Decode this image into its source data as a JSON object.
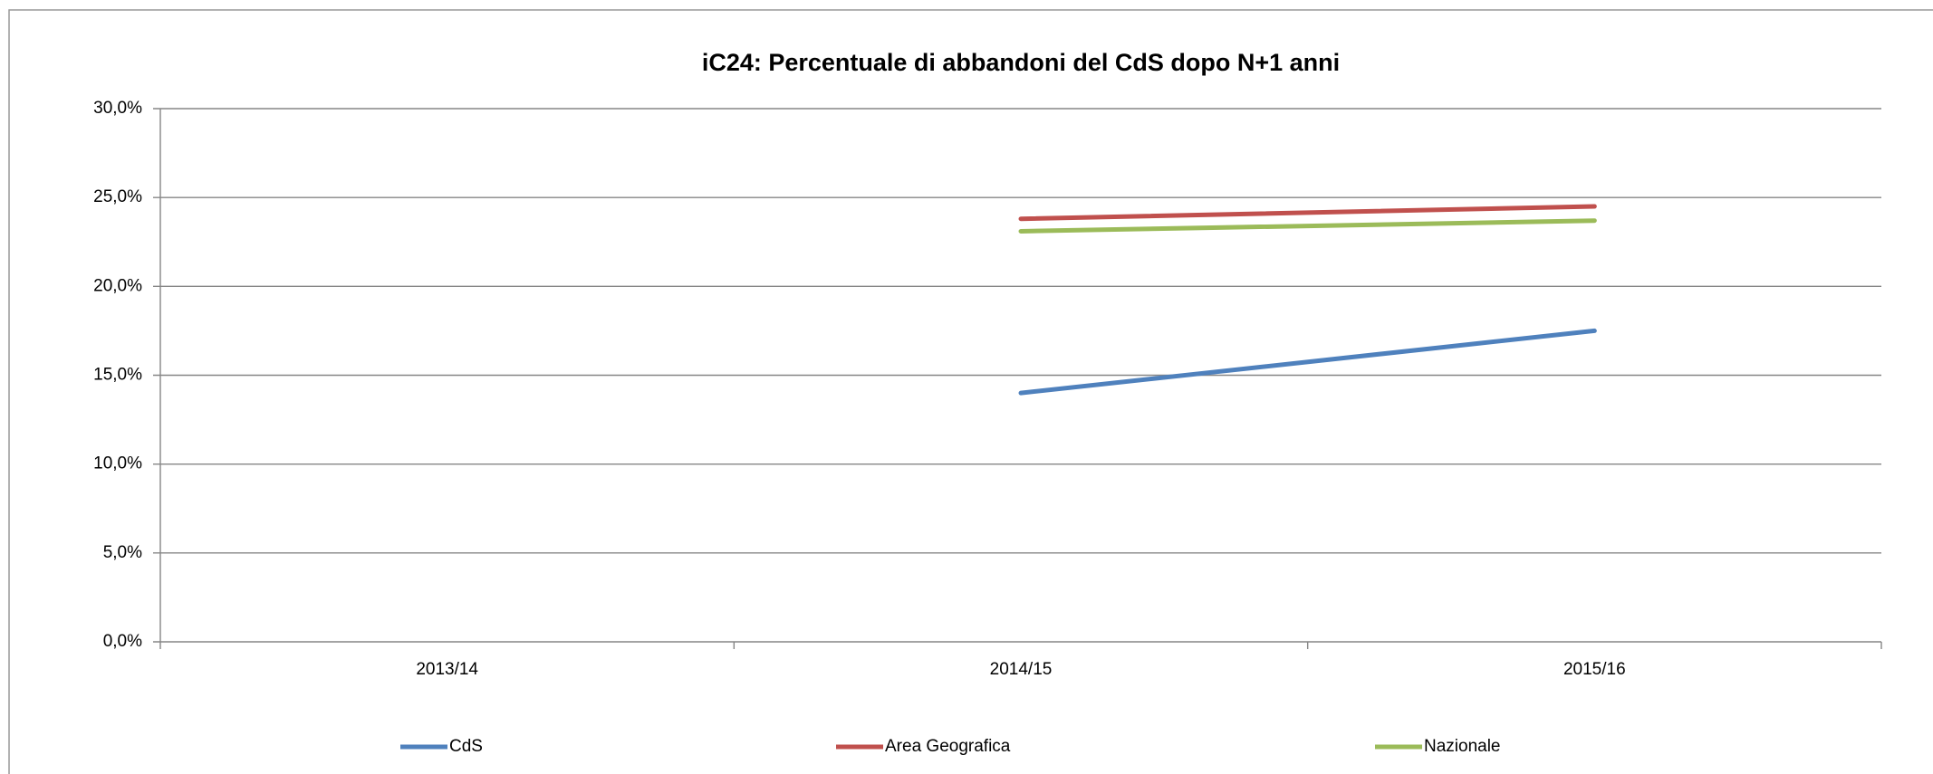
{
  "chart_data": {
    "type": "line",
    "title": "iC24: Percentuale di abbandoni del CdS dopo N+1 anni",
    "categories": [
      "2013/14",
      "2014/15",
      "2015/16"
    ],
    "series": [
      {
        "name": "CdS",
        "color": "#4f81bd",
        "values": [
          null,
          14.0,
          17.5
        ]
      },
      {
        "name": "Area Geografica",
        "color": "#c0504d",
        "values": [
          null,
          23.8,
          24.5
        ]
      },
      {
        "name": "Nazionale",
        "color": "#9bbb59",
        "values": [
          null,
          23.1,
          23.7
        ]
      }
    ],
    "ylim": [
      0,
      30
    ],
    "yticks": [
      {
        "value": 0,
        "label": "0,0%"
      },
      {
        "value": 5,
        "label": "5,0%"
      },
      {
        "value": 10,
        "label": "10,0%"
      },
      {
        "value": 15,
        "label": "15,0%"
      },
      {
        "value": 20,
        "label": "20,0%"
      },
      {
        "value": 25,
        "label": "25,0%"
      },
      {
        "value": 30,
        "label": "30,0%"
      }
    ],
    "grid": true,
    "legend": "bottom"
  }
}
